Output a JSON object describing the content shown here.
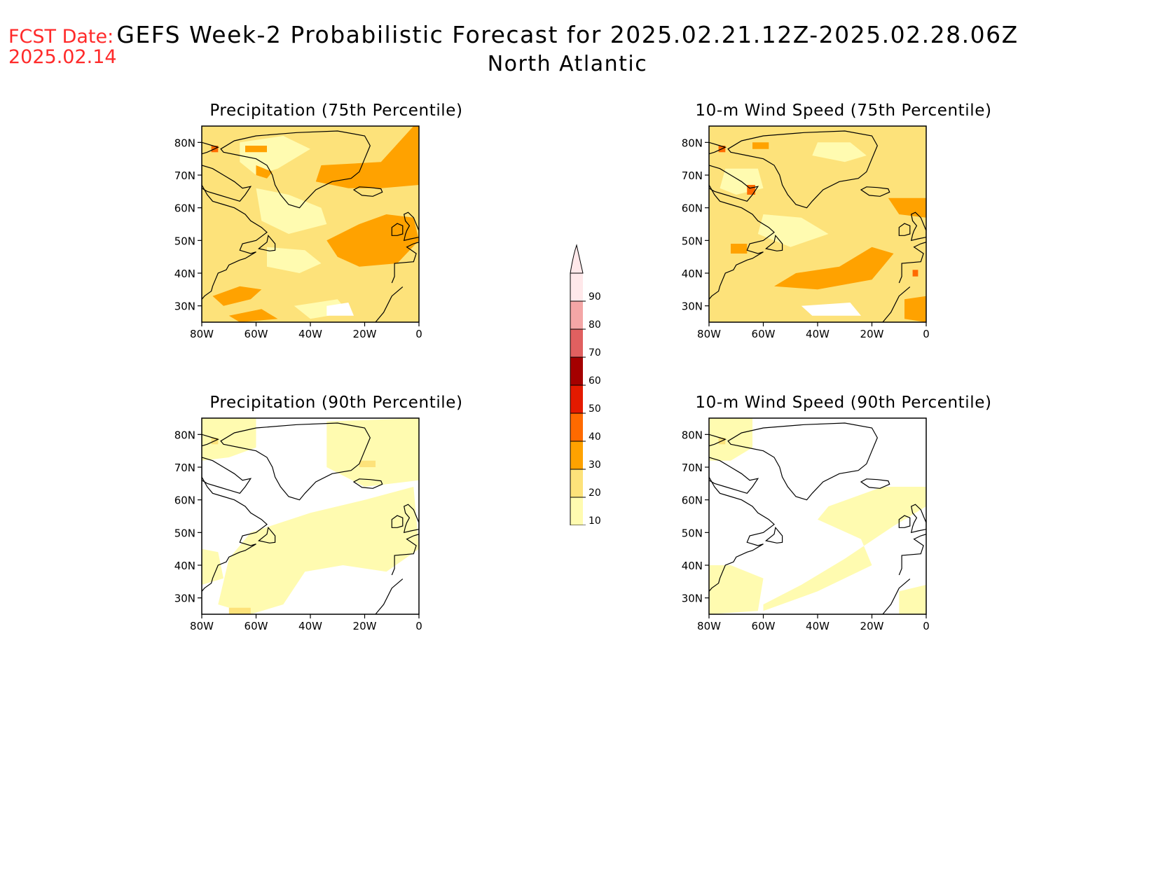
{
  "header": {
    "fcst_label": "FCST Date:",
    "fcst_date": "2025.02.14",
    "title": "GEFS Week-2 Probabilistic Forecast for 2025.02.21.12Z-2025.02.28.06Z",
    "subtitle": "North Atlantic"
  },
  "colors": {
    "fcst_text": "#ff2a2a",
    "ocean_base": "#fffbb0",
    "land_outline": "#000000"
  },
  "panels": [
    {
      "id": "precip-75",
      "title": "Precipitation (75th Percentile)"
    },
    {
      "id": "wind-75",
      "title": "10-m Wind Speed (75th Percentile)"
    },
    {
      "id": "precip-90",
      "title": "Precipitation (90th Percentile)"
    },
    {
      "id": "wind-90",
      "title": "10-m Wind Speed (90th Percentile)"
    }
  ],
  "axes": {
    "x_ticks": [
      "80W",
      "60W",
      "40W",
      "20W",
      "0"
    ],
    "y_ticks": [
      "80N",
      "70N",
      "60N",
      "50N",
      "40N",
      "30N"
    ]
  },
  "colorbar": {
    "levels": [
      "10",
      "20",
      "30",
      "40",
      "50",
      "60",
      "70",
      "80",
      "90"
    ],
    "colors": [
      "#fffbb0",
      "#fde27a",
      "#ffa200",
      "#ff6a00",
      "#e41a00",
      "#a40000",
      "#e06060",
      "#f4a6a6",
      "#ffe8ea"
    ]
  }
}
